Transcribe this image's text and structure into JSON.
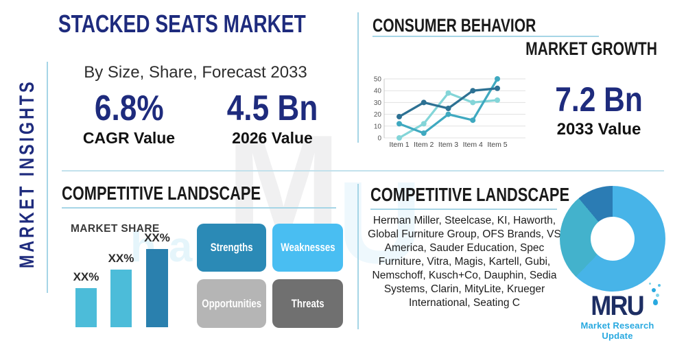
{
  "sidebar": {
    "vertical_title": "MARKET INSIGHTS"
  },
  "header": {
    "title": "STACKED SEATS MARKET",
    "subtitle": "By Size, Share, Forecast 2033",
    "stats": [
      {
        "value": "6.8%",
        "label": "CAGR Value"
      },
      {
        "value": "4.5 Bn",
        "label": "2026 Value"
      }
    ]
  },
  "consumer_behavior": {
    "heading": "CONSUMER BEHAVIOR",
    "subheading": "MARKET GROWTH",
    "stat": {
      "value": "7.2 Bn",
      "label": "2033 Value"
    }
  },
  "competitive_landscape_left": {
    "heading": "COMPETITIVE LANDSCAPE",
    "market_share_label": "MARKET SHARE",
    "swot": [
      {
        "label": "Strengths",
        "color": "#2b8ab6"
      },
      {
        "label": "Weaknesses",
        "color": "#49bef2"
      },
      {
        "label": "Opportunities",
        "color": "#b5b5b5"
      },
      {
        "label": "Threats",
        "color": "#707070"
      }
    ]
  },
  "competitive_landscape_right": {
    "heading": "COMPETITIVE LANDSCAPE",
    "companies": "Herman Miller, Steelcase, KI, Haworth, Global Furniture Group, OFS Brands, VS America, Sauder Education, Spec Furniture, Vitra, Magis, Kartell, Gubi, Nemschoff, Kusch+Co, Dauphin, Sedia Systems, Clarin, MityLite, Krueger International, Seating C"
  },
  "logo": {
    "text": "MRU",
    "tagline": "Market Research Update"
  },
  "watermark": {
    "primary": "M",
    "secondary": "U",
    "tertiary": "ha"
  },
  "colors": {
    "navy": "#1e2b7d",
    "heading_black": "#1a1a1a",
    "divider_blue": "#a5d5e6",
    "logo_navy": "#1d2e63",
    "logo_cyan": "#29a9e0"
  },
  "chart_data": [
    {
      "type": "line",
      "title": "",
      "x_categories": [
        "Item 1",
        "Item 2",
        "Item 3",
        "Item 4",
        "Item 5"
      ],
      "ylim": [
        0,
        50
      ],
      "yticks": [
        0,
        10,
        20,
        30,
        40,
        50
      ],
      "grid": true,
      "legend": false,
      "series": [
        {
          "name": "series-light",
          "color": "#83d5d8",
          "values": [
            0,
            12,
            38,
            30,
            32
          ]
        },
        {
          "name": "series-teal",
          "color": "#3fa9c0",
          "values": [
            12,
            4,
            20,
            15,
            50
          ]
        },
        {
          "name": "series-dark",
          "color": "#2d7193",
          "values": [
            18,
            30,
            25,
            40,
            42
          ]
        }
      ]
    },
    {
      "type": "bar",
      "title": "MARKET SHARE",
      "categories": [
        "bar-1",
        "bar-2",
        "bar-3"
      ],
      "values": [
        25,
        37,
        50
      ],
      "value_labels": [
        "XX%",
        "XX%",
        "XX%"
      ],
      "colors": [
        "#4cbcd9",
        "#4cbcd9",
        "#2a80ae"
      ],
      "ylim": [
        0,
        62
      ],
      "grid": false
    },
    {
      "type": "pie",
      "donut": true,
      "start_angle_deg": 0,
      "slices": [
        {
          "name": "segment-primary",
          "value_pct": 62.2,
          "color": "#47b4e8"
        },
        {
          "name": "segment-secondary",
          "value_pct": 26.7,
          "color": "#43b2cc"
        },
        {
          "name": "segment-tertiary",
          "value_pct": 11.1,
          "color": "#2b7cb4"
        }
      ]
    }
  ]
}
